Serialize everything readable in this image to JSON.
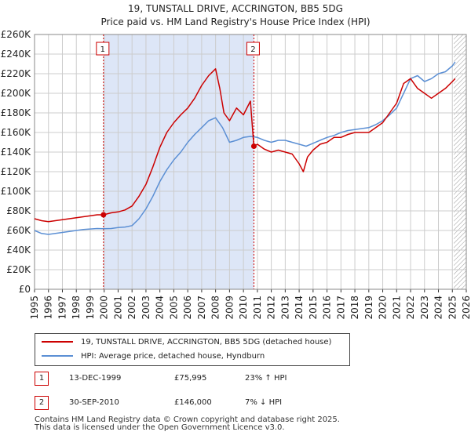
{
  "title_line1": "19, TUNSTALL DRIVE, ACCRINGTON, BB5 5DG",
  "title_line2": "Price paid vs. HM Land Registry's House Price Index (HPI)",
  "legend": {
    "property_label": "19, TUNSTALL DRIVE, ACCRINGTON, BB5 5DG (detached house)",
    "hpi_label": "HPI: Average price, detached house, Hyndburn"
  },
  "sales": [
    {
      "num": "1",
      "date": "13-DEC-1999",
      "price": "£75,995",
      "hpi": "23% ↑ HPI"
    },
    {
      "num": "2",
      "date": "30-SEP-2010",
      "price": "£146,000",
      "hpi": "7% ↓ HPI"
    }
  ],
  "footer_line1": "Contains HM Land Registry data © Crown copyright and database right 2025.",
  "footer_line2": "This data is licensed under the Open Government Licence v3.0.",
  "colors": {
    "property": "#cc0000",
    "hpi": "#5b8fd4",
    "shade": "#dde6f7",
    "grid": "#cccccc"
  },
  "chart_data": {
    "type": "line",
    "title": "19, TUNSTALL DRIVE, ACCRINGTON, BB5 5DG — Price paid vs. HM Land Registry's House Price Index (HPI)",
    "xlabel": "",
    "ylabel": "",
    "xlim": [
      1995,
      2026
    ],
    "ylim": [
      0,
      260000
    ],
    "x_ticks": [
      "1995",
      "1996",
      "1997",
      "1998",
      "1999",
      "2000",
      "2001",
      "2002",
      "2003",
      "2004",
      "2005",
      "2006",
      "2007",
      "2008",
      "2009",
      "2010",
      "2011",
      "2012",
      "2013",
      "2014",
      "2015",
      "2016",
      "2017",
      "2018",
      "2019",
      "2020",
      "2021",
      "2022",
      "2023",
      "2024",
      "2025",
      "2026"
    ],
    "y_ticks": [
      "£0",
      "£20K",
      "£40K",
      "£60K",
      "£80K",
      "£100K",
      "£120K",
      "£140K",
      "£160K",
      "£180K",
      "£200K",
      "£220K",
      "£240K",
      "£260K"
    ],
    "sale_markers": [
      {
        "label": "1",
        "x": 1999.95,
        "y": 75995
      },
      {
        "label": "2",
        "x": 2010.75,
        "y": 146000
      }
    ],
    "shaded_range": [
      1999.95,
      2010.75
    ],
    "hatched_from": 2025.1,
    "series": [
      {
        "name": "19, TUNSTALL DRIVE, ACCRINGTON, BB5 5DG (detached house)",
        "x": [
          1995,
          1995.5,
          1996,
          1996.5,
          1997,
          1997.5,
          1998,
          1998.5,
          1999,
          1999.5,
          1999.95,
          2000.5,
          2001,
          2001.5,
          2002,
          2002.5,
          2003,
          2003.5,
          2004,
          2004.5,
          2005,
          2005.5,
          2006,
          2006.5,
          2007,
          2007.5,
          2008,
          2008.3,
          2008.6,
          2009,
          2009.5,
          2010,
          2010.5,
          2010.75,
          2011,
          2011.5,
          2012,
          2012.5,
          2013,
          2013.5,
          2014,
          2014.3,
          2014.6,
          2015,
          2015.5,
          2016,
          2016.5,
          2017,
          2017.5,
          2018,
          2018.5,
          2019,
          2019.5,
          2020,
          2020.5,
          2021,
          2021.5,
          2022,
          2022.5,
          2023,
          2023.5,
          2024,
          2024.5,
          2025,
          2025.2
        ],
        "y": [
          72000,
          70000,
          69000,
          70000,
          71000,
          72000,
          73000,
          74000,
          75000,
          76000,
          75995,
          78000,
          79000,
          81000,
          85000,
          95000,
          107000,
          125000,
          145000,
          160000,
          170000,
          178000,
          185000,
          195000,
          208000,
          218000,
          225000,
          205000,
          180000,
          172000,
          185000,
          178000,
          192000,
          146000,
          148000,
          143000,
          140000,
          142000,
          140000,
          138000,
          128000,
          120000,
          135000,
          142000,
          148000,
          150000,
          155000,
          155000,
          158000,
          160000,
          160000,
          160000,
          165000,
          170000,
          180000,
          190000,
          210000,
          215000,
          205000,
          200000,
          195000,
          200000,
          205000,
          212000,
          215000
        ]
      },
      {
        "name": "HPI: Average price, detached house, Hyndburn",
        "x": [
          1995,
          1995.5,
          1996,
          1996.5,
          1997,
          1997.5,
          1998,
          1998.5,
          1999,
          1999.5,
          2000,
          2000.5,
          2001,
          2001.5,
          2002,
          2002.5,
          2003,
          2003.5,
          2004,
          2004.5,
          2005,
          2005.5,
          2006,
          2006.5,
          2007,
          2007.5,
          2008,
          2008.5,
          2009,
          2009.5,
          2010,
          2010.5,
          2011,
          2011.5,
          2012,
          2012.5,
          2013,
          2013.5,
          2014,
          2014.5,
          2015,
          2015.5,
          2016,
          2016.5,
          2017,
          2017.5,
          2018,
          2018.5,
          2019,
          2019.5,
          2020,
          2020.5,
          2021,
          2021.5,
          2022,
          2022.5,
          2023,
          2023.5,
          2024,
          2024.5,
          2025,
          2025.2
        ],
        "y": [
          60000,
          57000,
          56000,
          57000,
          58000,
          59000,
          60000,
          61000,
          61500,
          62000,
          61800,
          62000,
          63000,
          63500,
          65000,
          72000,
          82000,
          95000,
          110000,
          122000,
          132000,
          140000,
          150000,
          158000,
          165000,
          172000,
          175000,
          165000,
          150000,
          152000,
          155000,
          156000,
          155000,
          152000,
          150000,
          152000,
          152000,
          150000,
          148000,
          146000,
          149000,
          152000,
          155000,
          157000,
          160000,
          162000,
          163000,
          164000,
          165000,
          168000,
          172000,
          178000,
          185000,
          200000,
          215000,
          218000,
          212000,
          215000,
          220000,
          222000,
          228000,
          232000
        ]
      }
    ]
  }
}
